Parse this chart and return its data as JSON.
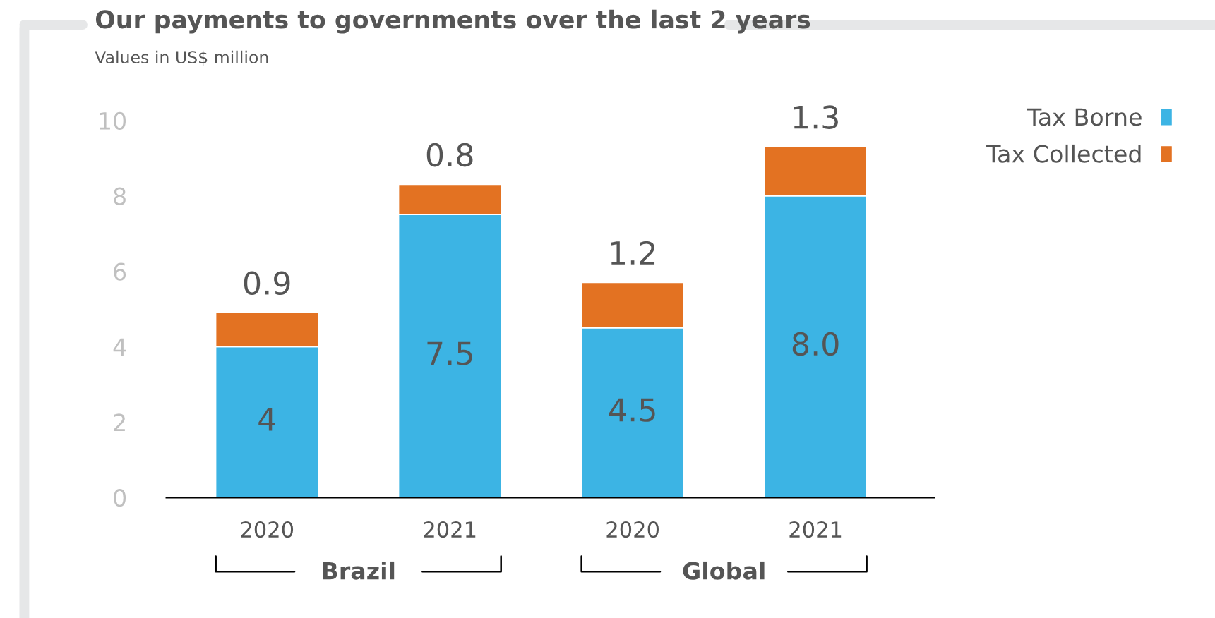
{
  "chart_data": {
    "type": "bar",
    "title": "Our payments to governments over the last 2 years",
    "subtitle": "Values in US$ million",
    "categories": [
      "2020",
      "2021",
      "2020",
      "2021"
    ],
    "series": [
      {
        "name": "Tax Borne",
        "color": "#3cb4e4",
        "values": [
          4,
          7.5,
          4.5,
          8.0
        ],
        "value_labels": [
          "4",
          "7.5",
          "4.5",
          "8.0"
        ]
      },
      {
        "name": "Tax Collected",
        "color": "#e37222",
        "values": [
          0.9,
          0.8,
          1.2,
          1.3
        ],
        "value_labels": [
          "0.9",
          "0.8",
          "1.2",
          "1.3"
        ]
      }
    ],
    "stacked": true,
    "ylim": [
      0,
      10
    ],
    "yticks": [
      0,
      2,
      4,
      6,
      8,
      10
    ],
    "grid": false,
    "legend": "top right",
    "annotations": [
      "Brazil",
      "Global"
    ]
  }
}
